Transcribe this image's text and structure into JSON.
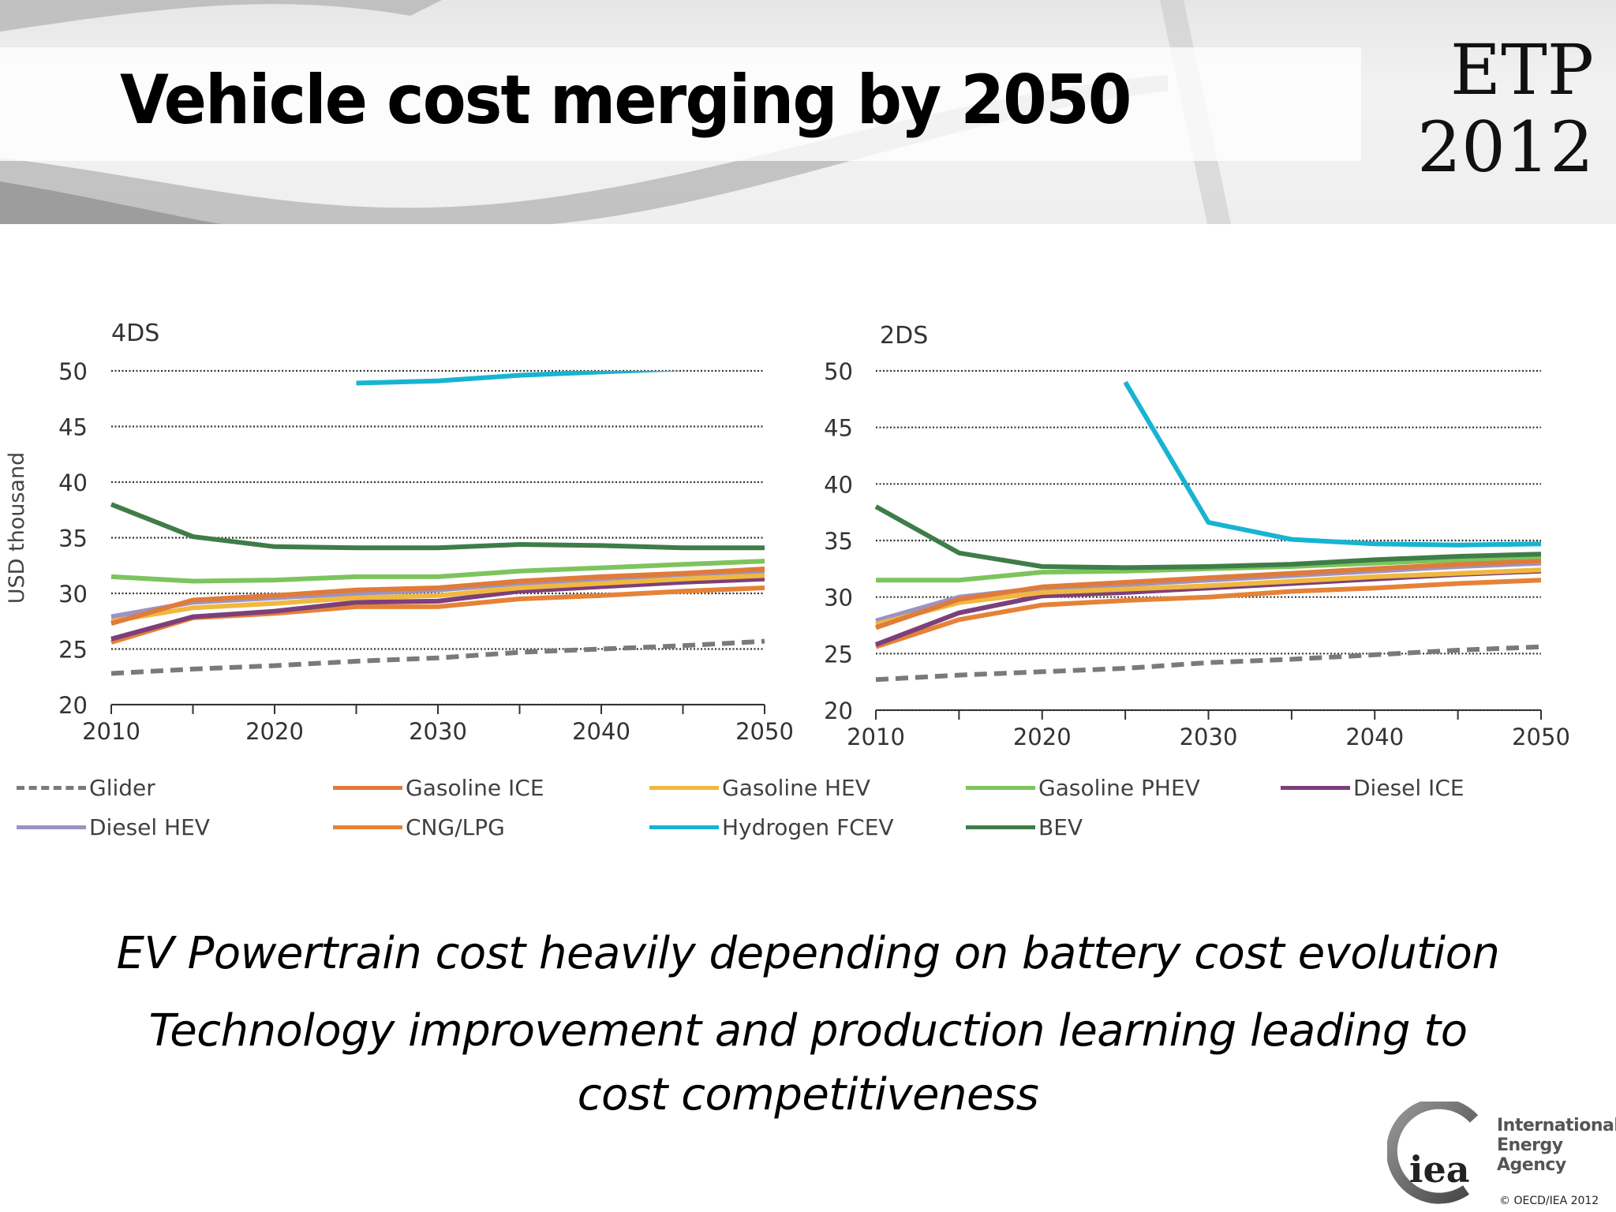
{
  "slide": {
    "title": "Vehicle cost merging by 2050",
    "badge_line1": "ETP",
    "badge_line2": "2012",
    "bullets": [
      "EV Powertrain cost heavily depending on battery cost evolution",
      "Technology improvement and production learning leading to",
      "cost competitiveness"
    ],
    "logo_text": "iea",
    "logo_name_line1": "International",
    "logo_name_line2": "Energy Agency",
    "copyright": "© OECD/IEA 2012"
  },
  "legend": [
    {
      "name": "Glider",
      "color": "#7a7a7a",
      "dashed": true
    },
    {
      "name": "Gasoline ICE",
      "color": "#e07b39"
    },
    {
      "name": "Gasoline HEV",
      "color": "#f0b840"
    },
    {
      "name": "Gasoline PHEV",
      "color": "#7dc45e"
    },
    {
      "name": "Diesel ICE",
      "color": "#7d3f7a"
    },
    {
      "name": "Diesel HEV",
      "color": "#9b93c4"
    },
    {
      "name": "CNG/LPG",
      "color": "#e58238"
    },
    {
      "name": "Hydrogen FCEV",
      "color": "#17b4d2"
    },
    {
      "name": "BEV",
      "color": "#3e7d48"
    }
  ],
  "chart_data": [
    {
      "type": "line",
      "title": "4DS",
      "ylabel": "USD thousand",
      "x": [
        2010,
        2015,
        2020,
        2025,
        2030,
        2035,
        2040,
        2045,
        2050
      ],
      "xticks": [
        2010,
        2020,
        2030,
        2040,
        2050
      ],
      "yticks": [
        20,
        25,
        30,
        35,
        40,
        45,
        50
      ],
      "ylim": [
        20,
        50
      ],
      "grid": "horizontal dotted",
      "legend": "bottom",
      "series": [
        {
          "name": "Glider",
          "values": [
            22.8,
            23.2,
            23.5,
            23.9,
            24.2,
            24.7,
            25.0,
            25.3,
            25.7
          ]
        },
        {
          "name": "CNG/LPG",
          "values": [
            25.6,
            27.8,
            28.2,
            28.8,
            28.8,
            29.5,
            29.8,
            30.2,
            30.5
          ]
        },
        {
          "name": "Diesel ICE",
          "values": [
            25.9,
            27.9,
            28.4,
            29.2,
            29.3,
            30.2,
            30.6,
            31.0,
            31.3
          ]
        },
        {
          "name": "Diesel HEV",
          "values": [
            27.9,
            29.2,
            29.6,
            30.0,
            30.3,
            30.9,
            31.3,
            31.7,
            32.0
          ]
        },
        {
          "name": "Gasoline HEV",
          "values": [
            27.5,
            28.7,
            29.1,
            29.6,
            29.8,
            30.5,
            30.9,
            31.3,
            31.6
          ]
        },
        {
          "name": "Gasoline ICE",
          "values": [
            27.3,
            29.4,
            29.8,
            30.3,
            30.5,
            31.1,
            31.5,
            31.8,
            32.2
          ]
        },
        {
          "name": "Gasoline PHEV",
          "values": [
            31.5,
            31.1,
            31.2,
            31.5,
            31.5,
            32.0,
            32.3,
            32.6,
            32.9
          ]
        },
        {
          "name": "BEV",
          "values": [
            38.0,
            35.1,
            34.2,
            34.1,
            34.1,
            34.4,
            34.3,
            34.1,
            34.1
          ]
        },
        {
          "name": "Hydrogen FCEV",
          "values": [
            null,
            null,
            null,
            48.9,
            49.1,
            49.6,
            49.9,
            50.2,
            50.5
          ]
        }
      ]
    },
    {
      "type": "line",
      "title": "2DS",
      "ylabel": "",
      "x": [
        2010,
        2015,
        2020,
        2025,
        2030,
        2035,
        2040,
        2045,
        2050
      ],
      "xticks": [
        2010,
        2020,
        2030,
        2040,
        2050
      ],
      "yticks": [
        20,
        25,
        30,
        35,
        40,
        45,
        50
      ],
      "ylim": [
        20,
        50
      ],
      "grid": "horizontal dotted",
      "legend": "bottom",
      "series": [
        {
          "name": "Glider",
          "values": [
            22.7,
            23.1,
            23.4,
            23.7,
            24.2,
            24.5,
            24.9,
            25.3,
            25.6
          ]
        },
        {
          "name": "CNG/LPG",
          "values": [
            25.6,
            28.0,
            29.3,
            29.7,
            30.0,
            30.5,
            30.8,
            31.2,
            31.5
          ]
        },
        {
          "name": "Diesel ICE",
          "values": [
            25.8,
            28.6,
            30.1,
            30.4,
            30.8,
            31.2,
            31.6,
            32.0,
            32.3
          ]
        },
        {
          "name": "Diesel HEV",
          "values": [
            27.9,
            30.0,
            30.8,
            31.1,
            31.5,
            31.9,
            32.3,
            32.7,
            33.0
          ]
        },
        {
          "name": "Gasoline HEV",
          "values": [
            27.6,
            29.5,
            30.4,
            30.7,
            31.0,
            31.4,
            31.8,
            32.1,
            32.4
          ]
        },
        {
          "name": "Gasoline ICE",
          "values": [
            27.3,
            29.8,
            30.9,
            31.3,
            31.7,
            32.1,
            32.5,
            32.9,
            33.2
          ]
        },
        {
          "name": "Gasoline PHEV",
          "values": [
            31.5,
            31.5,
            32.2,
            32.3,
            32.5,
            32.7,
            33.0,
            33.3,
            33.6
          ]
        },
        {
          "name": "BEV",
          "values": [
            38.0,
            33.9,
            32.7,
            32.6,
            32.7,
            32.9,
            33.3,
            33.6,
            33.8
          ]
        },
        {
          "name": "Hydrogen FCEV",
          "values": [
            null,
            null,
            null,
            49.0,
            36.6,
            35.1,
            34.7,
            34.6,
            34.7
          ]
        }
      ]
    }
  ]
}
